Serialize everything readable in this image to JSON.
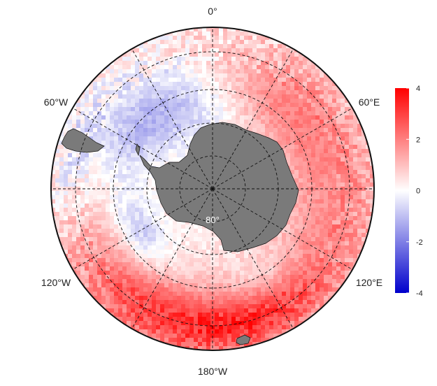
{
  "map": {
    "projection": "south-polar-stereographic",
    "longitude_labels": [
      {
        "id": "0",
        "text": "0°"
      },
      {
        "id": "60E",
        "text": "60°E"
      },
      {
        "id": "120E",
        "text": "120°E"
      },
      {
        "id": "180",
        "text": "180°W"
      },
      {
        "id": "120W",
        "text": "120°W"
      },
      {
        "id": "60W",
        "text": "60°W"
      }
    ],
    "latitude_label": "80°",
    "land_color": "#7a7a7a",
    "field_description_colors": {
      "positive": "#ff0000",
      "zero": "#ffffff",
      "negative": "#0000cc"
    }
  },
  "colorbar": {
    "min": -4,
    "max": 4,
    "ticks": [
      "4",
      "2",
      "0",
      "-2",
      "-4"
    ],
    "colors": {
      "top": "#ff0000",
      "middle": "#ffffff",
      "bottom": "#0000cc"
    }
  }
}
